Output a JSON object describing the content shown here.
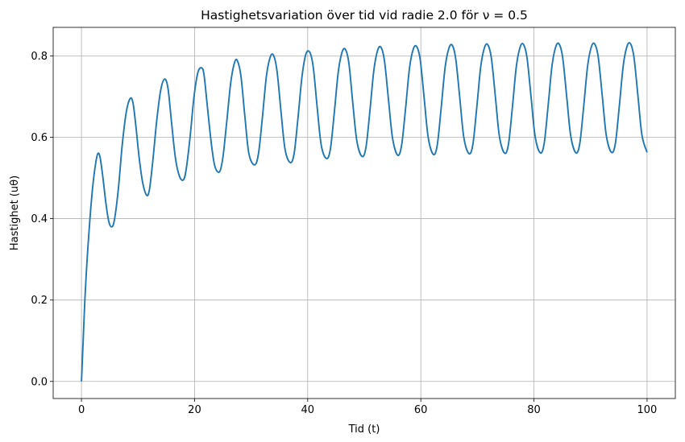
{
  "chart_data": {
    "type": "line",
    "title": "Hastighetsvariation över tid vid radie 2.0 för ν = 0.5",
    "xlabel": "Tid (t)",
    "ylabel": "Hastighet (uθ)",
    "xlim": [
      -5,
      105
    ],
    "ylim": [
      -0.042,
      0.87
    ],
    "xticks": [
      0,
      20,
      40,
      60,
      80,
      100
    ],
    "xtick_labels": [
      "0",
      "20",
      "40",
      "60",
      "80",
      "100"
    ],
    "yticks": [
      0.0,
      0.2,
      0.4,
      0.6,
      0.8
    ],
    "ytick_labels": [
      "0.0",
      "0.2",
      "0.4",
      "0.6",
      "0.8"
    ],
    "grid": true,
    "series": [
      {
        "color": "#1f77b4",
        "x": [
          0,
          0.3,
          0.6,
          1.0,
          1.5,
          2.0,
          2.5,
          2.9,
          3.3,
          3.8,
          4.3,
          4.8,
          5.3,
          5.8,
          6.5,
          7.2,
          7.9,
          8.6,
          9.1,
          9.6,
          10.2,
          10.8,
          11.5,
          12.0,
          12.6,
          13.3,
          14.0,
          14.7,
          15.3,
          15.9,
          16.6,
          17.3,
          18.0,
          18.5,
          19.2,
          19.9,
          20.6,
          21.3,
          21.7,
          22.3,
          23.0,
          23.6,
          24.4,
          25.0,
          25.7,
          26.4,
          27.1,
          27.6,
          28.2,
          28.9,
          29.6,
          30.6,
          31.3,
          32.0,
          32.7,
          33.4,
          34.0,
          34.6,
          35.3,
          36.0,
          36.9,
          37.6,
          38.3,
          39.0,
          39.7,
          40.4,
          41.0,
          41.7,
          42.4,
          43.3,
          44.0,
          44.7,
          45.4,
          46.1,
          46.7,
          47.3,
          48.0,
          48.7,
          49.6,
          50.3,
          51.0,
          51.7,
          52.4,
          53.0,
          53.6,
          54.3,
          55.0,
          55.9,
          56.6,
          57.3,
          58.0,
          58.7,
          59.3,
          59.9,
          60.6,
          61.3,
          62.2,
          62.9,
          63.6,
          64.3,
          65.0,
          65.6,
          66.2,
          66.9,
          67.6,
          68.5,
          69.2,
          69.9,
          70.6,
          71.3,
          71.9,
          72.5,
          73.2,
          73.9,
          74.8,
          75.5,
          76.2,
          76.9,
          77.6,
          78.2,
          78.8,
          79.5,
          80.2,
          81.1,
          81.8,
          82.5,
          83.2,
          83.9,
          84.5,
          85.1,
          85.8,
          86.5,
          87.4,
          88.1,
          88.8,
          89.5,
          90.2,
          90.8,
          91.4,
          92.1,
          92.8,
          93.7,
          94.4,
          95.1,
          95.8,
          96.5,
          97.1,
          97.7,
          98.4,
          99.1,
          100.0
        ],
        "y": [
          0.0,
          0.1,
          0.2,
          0.3,
          0.4,
          0.48,
          0.535,
          0.56,
          0.55,
          0.5,
          0.44,
          0.395,
          0.38,
          0.395,
          0.47,
          0.58,
          0.66,
          0.695,
          0.685,
          0.63,
          0.55,
          0.49,
          0.458,
          0.47,
          0.54,
          0.64,
          0.715,
          0.743,
          0.72,
          0.64,
          0.55,
          0.505,
          0.495,
          0.52,
          0.6,
          0.7,
          0.76,
          0.77,
          0.75,
          0.67,
          0.58,
          0.528,
          0.515,
          0.55,
          0.64,
          0.735,
          0.785,
          0.787,
          0.75,
          0.65,
          0.56,
          0.532,
          0.56,
          0.65,
          0.75,
          0.798,
          0.8,
          0.76,
          0.66,
          0.57,
          0.538,
          0.56,
          0.65,
          0.75,
          0.805,
          0.808,
          0.77,
          0.67,
          0.58,
          0.548,
          0.57,
          0.66,
          0.76,
          0.81,
          0.815,
          0.78,
          0.68,
          0.59,
          0.553,
          0.575,
          0.665,
          0.765,
          0.815,
          0.82,
          0.785,
          0.69,
          0.598,
          0.556,
          0.58,
          0.67,
          0.77,
          0.818,
          0.822,
          0.79,
          0.695,
          0.6,
          0.558,
          0.58,
          0.672,
          0.772,
          0.82,
          0.825,
          0.79,
          0.695,
          0.6,
          0.56,
          0.582,
          0.674,
          0.774,
          0.822,
          0.826,
          0.792,
          0.697,
          0.602,
          0.561,
          0.583,
          0.675,
          0.775,
          0.823,
          0.827,
          0.793,
          0.698,
          0.603,
          0.562,
          0.584,
          0.676,
          0.776,
          0.824,
          0.828,
          0.794,
          0.699,
          0.604,
          0.562,
          0.584,
          0.676,
          0.776,
          0.824,
          0.828,
          0.794,
          0.699,
          0.604,
          0.563,
          0.585,
          0.677,
          0.777,
          0.825,
          0.829,
          0.795,
          0.7,
          0.605,
          0.563
        ]
      }
    ]
  }
}
